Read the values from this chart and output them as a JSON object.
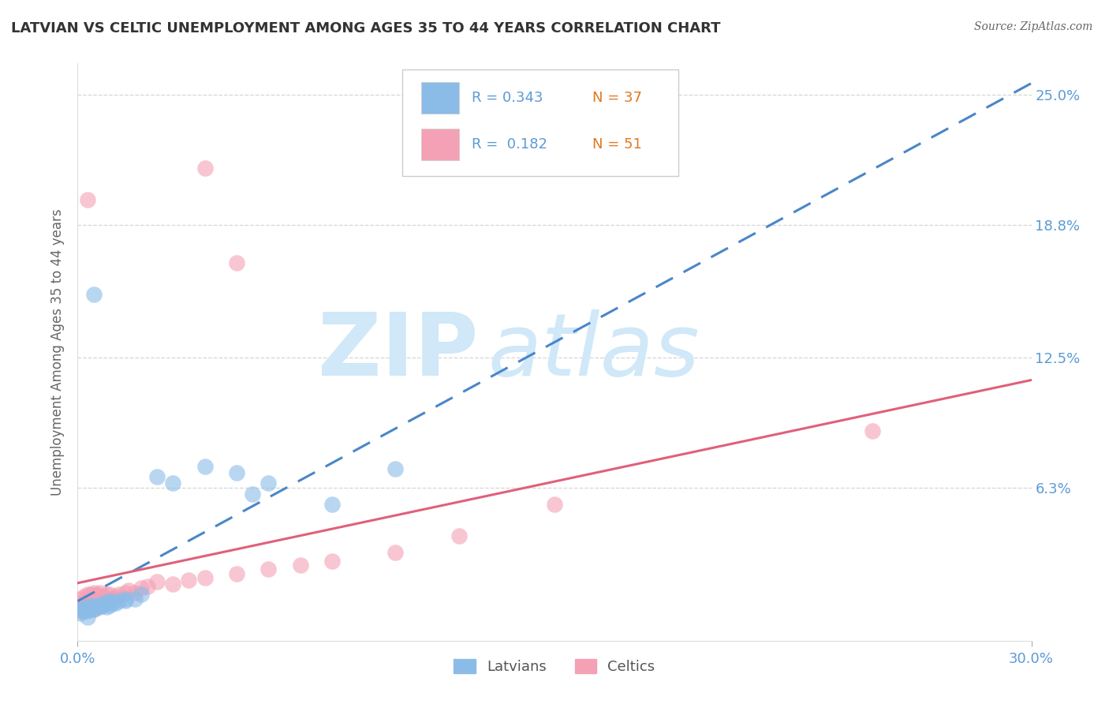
{
  "title": "LATVIAN VS CELTIC UNEMPLOYMENT AMONG AGES 35 TO 44 YEARS CORRELATION CHART",
  "source": "Source: ZipAtlas.com",
  "ylabel": "Unemployment Among Ages 35 to 44 years",
  "xlim": [
    0.0,
    0.3
  ],
  "ylim": [
    -0.01,
    0.265
  ],
  "x_tick_labels": [
    "0.0%",
    "30.0%"
  ],
  "y_tick_positions": [
    0.063,
    0.125,
    0.188,
    0.25
  ],
  "y_tick_labels": [
    "6.3%",
    "12.5%",
    "18.8%",
    "25.0%"
  ],
  "legend_R1": "R = 0.343",
  "legend_N1": "N = 37",
  "legend_R2": "R =  0.182",
  "legend_N2": "N = 51",
  "latvian_color": "#8bbce8",
  "celtic_color": "#f4a0b5",
  "latvian_line_color": "#4a86c8",
  "celtic_line_color": "#e0607a",
  "title_color": "#333333",
  "axis_label_color": "#5b9bd5",
  "watermark_color": "#d0e8f8",
  "background_color": "#ffffff",
  "grid_color": "#cccccc",
  "source_color": "#666666",
  "latvian_x": [
    0.001,
    0.001,
    0.002,
    0.002,
    0.003,
    0.003,
    0.004,
    0.004,
    0.005,
    0.005,
    0.006,
    0.006,
    0.007,
    0.007,
    0.008,
    0.008,
    0.009,
    0.009,
    0.01,
    0.01,
    0.011,
    0.012,
    0.013,
    0.015,
    0.015,
    0.018,
    0.02,
    0.025,
    0.03,
    0.04,
    0.05,
    0.055,
    0.06,
    0.08,
    0.1,
    0.005,
    0.003
  ],
  "latvian_y": [
    0.003,
    0.005,
    0.004,
    0.006,
    0.004,
    0.005,
    0.005,
    0.007,
    0.005,
    0.006,
    0.006,
    0.007,
    0.006,
    0.007,
    0.007,
    0.008,
    0.006,
    0.008,
    0.007,
    0.009,
    0.008,
    0.008,
    0.009,
    0.009,
    0.01,
    0.01,
    0.012,
    0.068,
    0.065,
    0.073,
    0.07,
    0.06,
    0.065,
    0.055,
    0.072,
    0.155,
    0.001
  ],
  "celtic_x": [
    0.001,
    0.001,
    0.001,
    0.002,
    0.002,
    0.002,
    0.003,
    0.003,
    0.003,
    0.004,
    0.004,
    0.004,
    0.005,
    0.005,
    0.005,
    0.005,
    0.006,
    0.006,
    0.006,
    0.007,
    0.007,
    0.007,
    0.008,
    0.008,
    0.009,
    0.009,
    0.01,
    0.01,
    0.011,
    0.012,
    0.013,
    0.015,
    0.016,
    0.018,
    0.02,
    0.022,
    0.025,
    0.03,
    0.035,
    0.04,
    0.05,
    0.06,
    0.07,
    0.08,
    0.1,
    0.12,
    0.15,
    0.05,
    0.04,
    0.25,
    0.003
  ],
  "celtic_y": [
    0.004,
    0.007,
    0.01,
    0.005,
    0.008,
    0.011,
    0.006,
    0.009,
    0.012,
    0.006,
    0.009,
    0.012,
    0.005,
    0.007,
    0.01,
    0.013,
    0.006,
    0.009,
    0.012,
    0.007,
    0.01,
    0.013,
    0.008,
    0.011,
    0.009,
    0.012,
    0.009,
    0.012,
    0.01,
    0.011,
    0.012,
    0.013,
    0.014,
    0.013,
    0.015,
    0.016,
    0.018,
    0.017,
    0.019,
    0.02,
    0.022,
    0.024,
    0.026,
    0.028,
    0.032,
    0.04,
    0.055,
    0.17,
    0.215,
    0.09,
    0.2
  ]
}
